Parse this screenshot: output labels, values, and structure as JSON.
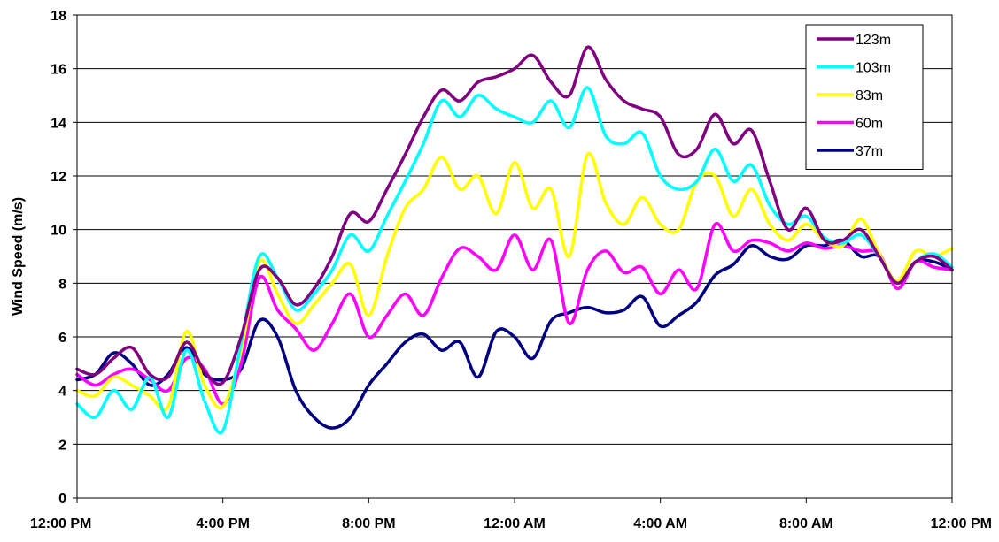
{
  "chart_data": {
    "type": "line",
    "title": "",
    "xlabel": "",
    "ylabel": "Wind Speed (m/s)",
    "ylim": [
      0,
      18
    ],
    "yticks": [
      0,
      2,
      4,
      6,
      8,
      10,
      12,
      14,
      16,
      18
    ],
    "xlim": [
      0,
      24
    ],
    "x_unit": "hours after 12:00 PM",
    "xticks": [
      {
        "x": 0,
        "label": "12:00 PM"
      },
      {
        "x": 4,
        "label": "4:00 PM"
      },
      {
        "x": 8,
        "label": "8:00 PM"
      },
      {
        "x": 12,
        "label": "12:00 AM"
      },
      {
        "x": 16,
        "label": "4:00 AM"
      },
      {
        "x": 20,
        "label": "8:00 AM"
      },
      {
        "x": 24,
        "label": "12:00 PM"
      }
    ],
    "grid": "horizontal",
    "legend_position": "top-right",
    "x": [
      0,
      0.5,
      1,
      1.5,
      2,
      2.5,
      3,
      3.5,
      4,
      4.5,
      5,
      5.5,
      6,
      6.5,
      7,
      7.5,
      8,
      8.5,
      9,
      9.5,
      10,
      10.5,
      11,
      11.5,
      12,
      12.5,
      13,
      13.5,
      14,
      14.5,
      15,
      15.5,
      16,
      16.5,
      17,
      17.5,
      18,
      18.5,
      19,
      19.5,
      20,
      20.5,
      21,
      21.5,
      22,
      22.5,
      23,
      23.5,
      24
    ],
    "series": [
      {
        "name": "123m",
        "color": "#800080",
        "values": [
          4.8,
          4.6,
          5.2,
          5.6,
          4.6,
          4.5,
          5.8,
          4.7,
          4.3,
          6.0,
          8.5,
          8.2,
          7.2,
          7.8,
          9.0,
          10.6,
          10.3,
          11.5,
          12.8,
          14.2,
          15.2,
          14.8,
          15.5,
          15.7,
          16.0,
          16.5,
          15.5,
          15.0,
          16.8,
          15.6,
          14.8,
          14.5,
          14.2,
          12.8,
          13.0,
          14.3,
          13.2,
          13.7,
          11.8,
          10.0,
          10.8,
          9.6,
          9.6,
          10.0,
          9.0,
          8.0,
          8.8,
          9.0,
          8.5
        ]
      },
      {
        "name": "103m",
        "color": "#00FFFF",
        "values": [
          3.5,
          3.0,
          4.0,
          3.3,
          4.5,
          3.0,
          5.5,
          3.6,
          2.5,
          5.8,
          9.0,
          8.2,
          7.0,
          7.6,
          8.5,
          9.8,
          9.2,
          10.5,
          11.8,
          13.2,
          14.8,
          14.2,
          15.0,
          14.5,
          14.2,
          14.0,
          14.8,
          13.8,
          15.3,
          13.5,
          13.2,
          13.6,
          12.0,
          11.5,
          11.8,
          13.0,
          11.8,
          12.4,
          10.9,
          10.2,
          10.5,
          9.7,
          9.5,
          9.8,
          9.0,
          8.0,
          8.8,
          9.1,
          8.6
        ]
      },
      {
        "name": "83m",
        "color": "#FFFF00",
        "values": [
          4.0,
          3.8,
          4.5,
          4.2,
          3.8,
          3.4,
          6.2,
          4.2,
          3.4,
          5.5,
          8.8,
          7.6,
          6.5,
          7.2,
          8.0,
          8.7,
          6.8,
          9.0,
          10.8,
          11.5,
          12.7,
          11.5,
          12.0,
          10.6,
          12.5,
          10.8,
          11.5,
          9.0,
          12.8,
          11.0,
          10.2,
          11.2,
          10.2,
          10.0,
          11.8,
          12.0,
          10.5,
          11.5,
          10.2,
          9.6,
          10.2,
          9.6,
          9.4,
          10.4,
          9.1,
          8.1,
          9.2,
          9.0,
          9.3
        ]
      },
      {
        "name": "60m",
        "color": "#FF00FF",
        "values": [
          4.6,
          4.2,
          4.6,
          4.8,
          4.4,
          4.0,
          5.2,
          4.8,
          3.5,
          5.0,
          8.2,
          7.0,
          6.3,
          5.5,
          6.5,
          7.6,
          6.0,
          6.8,
          7.6,
          6.8,
          8.2,
          9.3,
          9.0,
          8.5,
          9.8,
          8.5,
          9.6,
          6.5,
          8.5,
          9.2,
          8.4,
          8.6,
          7.6,
          8.5,
          7.8,
          10.2,
          9.2,
          9.6,
          9.5,
          9.2,
          9.5,
          9.3,
          9.4,
          9.2,
          9.1,
          7.8,
          8.8,
          8.6,
          8.5
        ]
      },
      {
        "name": "37m",
        "color": "#000080",
        "values": [
          4.4,
          4.6,
          5.4,
          5.0,
          4.2,
          4.6,
          5.6,
          4.6,
          4.4,
          4.8,
          6.6,
          6.0,
          4.0,
          3.0,
          2.6,
          3.0,
          4.2,
          5.0,
          5.8,
          6.1,
          5.5,
          5.8,
          4.5,
          6.2,
          6.0,
          5.2,
          6.6,
          6.9,
          7.1,
          6.9,
          7.0,
          7.5,
          6.4,
          6.8,
          7.3,
          8.3,
          8.7,
          9.4,
          9.0,
          8.9,
          9.4,
          9.4,
          9.6,
          9.0,
          9.0,
          8.0,
          8.8,
          8.8,
          8.5
        ]
      }
    ]
  }
}
